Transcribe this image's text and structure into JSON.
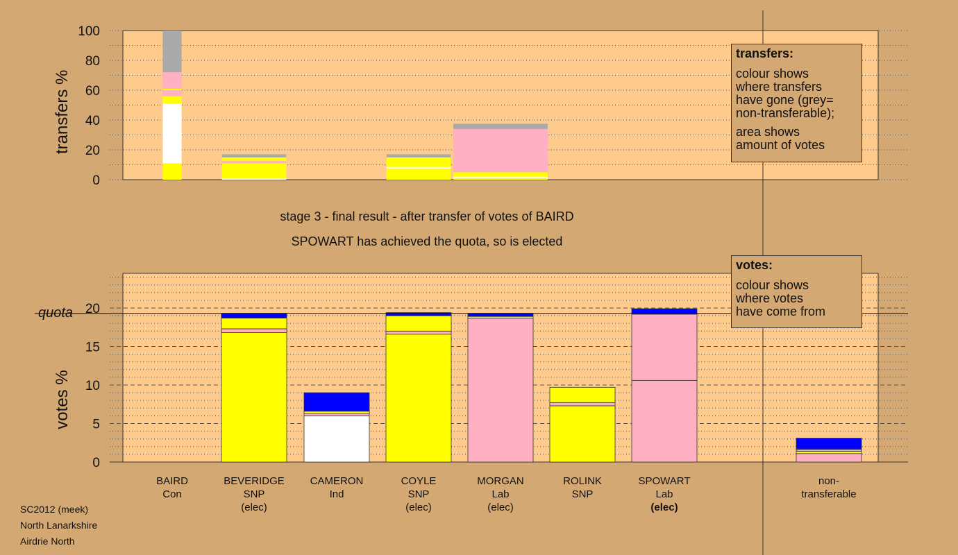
{
  "header": {
    "stage_title": "stage 3 - final result - after transfer of votes of BAIRD",
    "status_line": "SPOWART has achieved the quota, so is elected"
  },
  "footer": {
    "line1": "SC2012 (meek)",
    "line2": "North Lanarkshire",
    "line3": "Airdrie North"
  },
  "legend_transfers": {
    "heading": "transfers:",
    "line1": "colour shows",
    "line2": "where transfers",
    "line3": "have gone (grey=",
    "line4": "non-transferable);",
    "line5": "area shows",
    "line6": "amount of votes"
  },
  "legend_votes": {
    "heading": "votes:",
    "line1": "colour shows",
    "line2": "where votes",
    "line3": "have come from"
  },
  "colors": {
    "background": "#d4a872",
    "plot": "#fecb8d",
    "Con": "#0000ff",
    "SNP": "#ffff00",
    "Lab": "#ffb0c2",
    "Ind": "#ffffff",
    "nontransferable": "#aaaaaa"
  },
  "candidates": [
    {
      "name": "BAIRD",
      "party": "Con",
      "status": ""
    },
    {
      "name": "BEVERIDGE",
      "party": "SNP",
      "status": "(elec)"
    },
    {
      "name": "CAMERON",
      "party": "Ind",
      "status": ""
    },
    {
      "name": "COYLE",
      "party": "SNP",
      "status": "(elec)"
    },
    {
      "name": "MORGAN",
      "party": "Lab",
      "status": "(elec)"
    },
    {
      "name": "ROLINK",
      "party": "SNP",
      "status": ""
    },
    {
      "name": "SPOWART",
      "party": "Lab",
      "status": "(elec)"
    }
  ],
  "nontransferable_label": {
    "line1": "non-",
    "line2": "transferable"
  },
  "chart_data": [
    {
      "type": "bar",
      "id": "transfers",
      "ylabel": "transfers %",
      "ylim": [
        0,
        100
      ],
      "yticks": [
        0,
        20,
        40,
        60,
        80,
        100
      ],
      "bars": [
        {
          "candidate": "BAIRD",
          "width_pct": 2.5,
          "segments": [
            {
              "color": "#ffff00",
              "value": 11
            },
            {
              "color": "#ffffff",
              "value": 40
            },
            {
              "color": "#ffff00",
              "value": 5
            },
            {
              "color": "#ffb0c2",
              "value": 4
            },
            {
              "color": "#ffff00",
              "value": 1
            },
            {
              "color": "#ffb0c2",
              "value": 11
            },
            {
              "color": "#aaaaaa",
              "value": 28
            }
          ]
        },
        {
          "candidate": "BEVERIDGE",
          "width_pct": 8.5,
          "segments": [
            {
              "color": "#ffffff",
              "value": 1
            },
            {
              "color": "#ffff00",
              "value": 10
            },
            {
              "color": "#ffb0c2",
              "value": 1.5
            },
            {
              "color": "#ffff00",
              "value": 2.5
            },
            {
              "color": "#aaaaaa",
              "value": 2
            }
          ]
        },
        {
          "candidate": "COYLE",
          "width_pct": 8.5,
          "segments": [
            {
              "color": "#ffff00",
              "value": 7.5
            },
            {
              "color": "#ffffff",
              "value": 1
            },
            {
              "color": "#ffff00",
              "value": 6.5
            },
            {
              "color": "#aaaaaa",
              "value": 2
            }
          ]
        },
        {
          "candidate": "MORGAN",
          "width_pct": 12.5,
          "segments": [
            {
              "color": "#ffff00",
              "value": 1
            },
            {
              "color": "#ffffff",
              "value": 1
            },
            {
              "color": "#ffff00",
              "value": 3
            },
            {
              "color": "#ffb0c2",
              "value": 29
            },
            {
              "color": "#aaaaaa",
              "value": 3.5
            }
          ]
        }
      ]
    },
    {
      "type": "bar",
      "id": "votes",
      "ylabel": "votes %",
      "ylim": [
        0,
        24.5
      ],
      "yticks": [
        0,
        5,
        10,
        15,
        20
      ],
      "quota_label": "quota",
      "quota": 19.3,
      "bars": [
        {
          "candidate": "BAIRD",
          "segments": []
        },
        {
          "candidate": "BEVERIDGE",
          "segments": [
            {
              "color": "#ffff00",
              "value": 16.8
            },
            {
              "color": "#ffb0c2",
              "value": 0.5
            },
            {
              "color": "#ffff00",
              "value": 1.4
            },
            {
              "color": "#0000ff",
              "value": 0.6
            }
          ]
        },
        {
          "candidate": "CAMERON",
          "segments": [
            {
              "color": "#ffffff",
              "value": 6.0
            },
            {
              "color": "#ffb0c2",
              "value": 0.3
            },
            {
              "color": "#ffff00",
              "value": 0.3
            },
            {
              "color": "#0000ff",
              "value": 2.4
            }
          ]
        },
        {
          "candidate": "COYLE",
          "segments": [
            {
              "color": "#ffff00",
              "value": 16.6
            },
            {
              "color": "#ffb0c2",
              "value": 0.4
            },
            {
              "color": "#ffff00",
              "value": 2.0
            },
            {
              "color": "#0000ff",
              "value": 0.4
            }
          ]
        },
        {
          "candidate": "MORGAN",
          "segments": [
            {
              "color": "#ffb0c2",
              "value": 18.7
            },
            {
              "color": "#ffff00",
              "value": 0.2
            },
            {
              "color": "#0000ff",
              "value": 0.4
            }
          ]
        },
        {
          "candidate": "ROLINK",
          "segments": [
            {
              "color": "#ffff00",
              "value": 7.3
            },
            {
              "color": "#ffb0c2",
              "value": 0.4
            },
            {
              "color": "#ffff00",
              "value": 2.0
            }
          ]
        },
        {
          "candidate": "SPOWART",
          "segments": [
            {
              "color": "#ffb0c2",
              "value": 10.6
            },
            {
              "color": "#ffb0c2",
              "value": 8.6
            },
            {
              "color": "#0000ff",
              "value": 0.7
            }
          ]
        },
        {
          "candidate": "non-transferable",
          "segments": [
            {
              "color": "#ffb0c2",
              "value": 1.1
            },
            {
              "color": "#ffff00",
              "value": 0.3
            },
            {
              "color": "#ffb0c2",
              "value": 0.2
            },
            {
              "color": "#ffff00",
              "value": 0.1
            },
            {
              "color": "#0000ff",
              "value": 1.4
            }
          ]
        }
      ]
    }
  ]
}
